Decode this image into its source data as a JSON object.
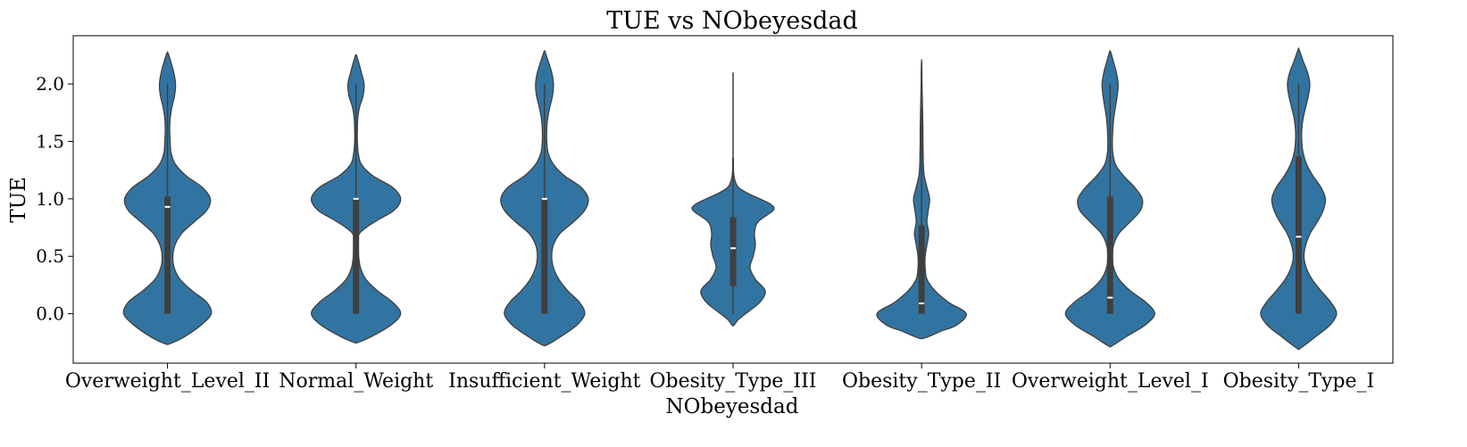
{
  "chart_data": {
    "type": "violin",
    "title": "TUE vs NObeyesdad",
    "xlabel": "NObeyesdad",
    "ylabel": "TUE",
    "ylim": [
      -0.43,
      2.42
    ],
    "yticks": [
      0.0,
      0.5,
      1.0,
      1.5,
      2.0
    ],
    "ytick_labels": [
      "0.0",
      "0.5",
      "1.0",
      "1.5",
      "2.0"
    ],
    "grid": false,
    "legend": "none",
    "colors": {
      "fill": "#3274a1",
      "edge": "#3f3f3f",
      "box": "#3f3f3f",
      "median": "#ffffff"
    },
    "categories": [
      "Overweight_Level_II",
      "Normal_Weight",
      "Insufficient_Weight",
      "Obesity_Type_III",
      "Obesity_Type_II",
      "Overweight_Level_I",
      "Obesity_Type_I"
    ],
    "violins": [
      {
        "category": "Overweight_Level_II",
        "whisker": [
          0.0,
          2.0
        ],
        "q1": 0.0,
        "median": 0.93,
        "q3": 1.02,
        "profile": [
          [
            -0.26,
            0.06
          ],
          [
            -0.2,
            0.38
          ],
          [
            -0.1,
            0.75
          ],
          [
            0.0,
            0.98
          ],
          [
            0.1,
            0.88
          ],
          [
            0.2,
            0.55
          ],
          [
            0.3,
            0.28
          ],
          [
            0.4,
            0.15
          ],
          [
            0.5,
            0.12
          ],
          [
            0.6,
            0.17
          ],
          [
            0.7,
            0.32
          ],
          [
            0.8,
            0.6
          ],
          [
            0.9,
            0.88
          ],
          [
            1.0,
            0.96
          ],
          [
            1.1,
            0.78
          ],
          [
            1.2,
            0.42
          ],
          [
            1.3,
            0.18
          ],
          [
            1.4,
            0.08
          ],
          [
            1.5,
            0.06
          ],
          [
            1.6,
            0.05
          ],
          [
            1.7,
            0.06
          ],
          [
            1.8,
            0.1
          ],
          [
            1.9,
            0.16
          ],
          [
            2.0,
            0.18
          ],
          [
            2.1,
            0.14
          ],
          [
            2.2,
            0.07
          ],
          [
            2.27,
            0.01
          ]
        ]
      },
      {
        "category": "Normal_Weight",
        "whisker": [
          0.0,
          2.0
        ],
        "q1": 0.0,
        "median": 1.0,
        "q3": 1.0,
        "profile": [
          [
            -0.25,
            0.04
          ],
          [
            -0.2,
            0.34
          ],
          [
            -0.1,
            0.78
          ],
          [
            0.0,
            1.0
          ],
          [
            0.1,
            0.82
          ],
          [
            0.2,
            0.48
          ],
          [
            0.3,
            0.22
          ],
          [
            0.4,
            0.1
          ],
          [
            0.5,
            0.06
          ],
          [
            0.6,
            0.05
          ],
          [
            0.7,
            0.08
          ],
          [
            0.8,
            0.42
          ],
          [
            0.9,
            0.85
          ],
          [
            1.0,
            1.0
          ],
          [
            1.1,
            0.82
          ],
          [
            1.2,
            0.38
          ],
          [
            1.3,
            0.12
          ],
          [
            1.4,
            0.05
          ],
          [
            1.5,
            0.03
          ],
          [
            1.6,
            0.03
          ],
          [
            1.7,
            0.04
          ],
          [
            1.8,
            0.08
          ],
          [
            1.9,
            0.16
          ],
          [
            2.0,
            0.18
          ],
          [
            2.1,
            0.12
          ],
          [
            2.2,
            0.05
          ],
          [
            2.25,
            0.01
          ]
        ]
      },
      {
        "category": "Insufficient_Weight",
        "whisker": [
          0.0,
          2.0
        ],
        "q1": 0.0,
        "median": 1.0,
        "q3": 1.0,
        "profile": [
          [
            -0.27,
            0.06
          ],
          [
            -0.2,
            0.36
          ],
          [
            -0.1,
            0.72
          ],
          [
            0.0,
            0.9
          ],
          [
            0.1,
            0.78
          ],
          [
            0.2,
            0.52
          ],
          [
            0.3,
            0.32
          ],
          [
            0.4,
            0.2
          ],
          [
            0.5,
            0.16
          ],
          [
            0.6,
            0.2
          ],
          [
            0.7,
            0.35
          ],
          [
            0.8,
            0.65
          ],
          [
            0.9,
            0.9
          ],
          [
            1.0,
            0.98
          ],
          [
            1.1,
            0.82
          ],
          [
            1.2,
            0.45
          ],
          [
            1.3,
            0.2
          ],
          [
            1.4,
            0.08
          ],
          [
            1.5,
            0.05
          ],
          [
            1.6,
            0.05
          ],
          [
            1.7,
            0.07
          ],
          [
            1.8,
            0.12
          ],
          [
            1.9,
            0.18
          ],
          [
            2.0,
            0.2
          ],
          [
            2.1,
            0.16
          ],
          [
            2.2,
            0.08
          ],
          [
            2.28,
            0.01
          ]
        ]
      },
      {
        "category": "Obesity_Type_III",
        "whisker": [
          0.0,
          2.1
        ],
        "q1": 0.24,
        "median": 0.57,
        "q3": 0.84,
        "profile": [
          [
            -0.1,
            0.02
          ],
          [
            -0.05,
            0.12
          ],
          [
            0.0,
            0.28
          ],
          [
            0.1,
            0.6
          ],
          [
            0.2,
            0.72
          ],
          [
            0.3,
            0.5
          ],
          [
            0.4,
            0.38
          ],
          [
            0.5,
            0.45
          ],
          [
            0.6,
            0.5
          ],
          [
            0.7,
            0.48
          ],
          [
            0.8,
            0.56
          ],
          [
            0.9,
            0.9
          ],
          [
            0.95,
            0.85
          ],
          [
            1.0,
            0.6
          ],
          [
            1.05,
            0.32
          ],
          [
            1.1,
            0.12
          ],
          [
            1.15,
            0.05
          ],
          [
            1.2,
            0.02
          ],
          [
            1.25,
            0.01
          ],
          [
            1.35,
            0.005
          ]
        ]
      },
      {
        "category": "Obesity_Type_II",
        "whisker": [
          0.0,
          1.8
        ],
        "q1": 0.0,
        "median": 0.09,
        "q3": 0.77,
        "profile": [
          [
            -0.21,
            0.08
          ],
          [
            -0.15,
            0.45
          ],
          [
            -0.1,
            0.78
          ],
          [
            0.0,
            1.0
          ],
          [
            0.1,
            0.6
          ],
          [
            0.2,
            0.3
          ],
          [
            0.3,
            0.12
          ],
          [
            0.4,
            0.08
          ],
          [
            0.5,
            0.08
          ],
          [
            0.6,
            0.12
          ],
          [
            0.7,
            0.16
          ],
          [
            0.8,
            0.12
          ],
          [
            0.9,
            0.15
          ],
          [
            1.0,
            0.18
          ],
          [
            1.1,
            0.12
          ],
          [
            1.2,
            0.06
          ],
          [
            1.3,
            0.04
          ],
          [
            1.4,
            0.035
          ],
          [
            1.5,
            0.03
          ],
          [
            1.6,
            0.03
          ],
          [
            1.7,
            0.025
          ],
          [
            1.8,
            0.02
          ],
          [
            1.9,
            0.015
          ],
          [
            2.0,
            0.01
          ],
          [
            2.1,
            0.008
          ],
          [
            2.2,
            0.002
          ]
        ]
      },
      {
        "category": "Overweight_Level_I",
        "whisker": [
          0.0,
          2.0
        ],
        "q1": 0.0,
        "median": 0.14,
        "q3": 1.02,
        "profile": [
          [
            -0.28,
            0.04
          ],
          [
            -0.2,
            0.36
          ],
          [
            -0.1,
            0.78
          ],
          [
            0.0,
            1.0
          ],
          [
            0.1,
            0.8
          ],
          [
            0.2,
            0.45
          ],
          [
            0.3,
            0.2
          ],
          [
            0.4,
            0.08
          ],
          [
            0.5,
            0.05
          ],
          [
            0.6,
            0.08
          ],
          [
            0.7,
            0.2
          ],
          [
            0.8,
            0.45
          ],
          [
            0.9,
            0.68
          ],
          [
            1.0,
            0.72
          ],
          [
            1.1,
            0.55
          ],
          [
            1.2,
            0.3
          ],
          [
            1.3,
            0.12
          ],
          [
            1.4,
            0.06
          ],
          [
            1.5,
            0.05
          ],
          [
            1.6,
            0.06
          ],
          [
            1.7,
            0.08
          ],
          [
            1.8,
            0.12
          ],
          [
            1.9,
            0.16
          ],
          [
            2.0,
            0.18
          ],
          [
            2.1,
            0.14
          ],
          [
            2.2,
            0.07
          ],
          [
            2.28,
            0.01
          ]
        ]
      },
      {
        "category": "Obesity_Type_I",
        "whisker": [
          0.0,
          2.0
        ],
        "q1": 0.0,
        "median": 0.67,
        "q3": 1.37,
        "profile": [
          [
            -0.3,
            0.04
          ],
          [
            -0.2,
            0.38
          ],
          [
            -0.1,
            0.7
          ],
          [
            0.0,
            0.85
          ],
          [
            0.1,
            0.72
          ],
          [
            0.2,
            0.5
          ],
          [
            0.3,
            0.3
          ],
          [
            0.4,
            0.17
          ],
          [
            0.5,
            0.12
          ],
          [
            0.6,
            0.16
          ],
          [
            0.7,
            0.26
          ],
          [
            0.8,
            0.42
          ],
          [
            0.9,
            0.55
          ],
          [
            1.0,
            0.6
          ],
          [
            1.1,
            0.5
          ],
          [
            1.2,
            0.32
          ],
          [
            1.3,
            0.18
          ],
          [
            1.4,
            0.1
          ],
          [
            1.5,
            0.07
          ],
          [
            1.6,
            0.07
          ],
          [
            1.7,
            0.1
          ],
          [
            1.8,
            0.16
          ],
          [
            1.9,
            0.22
          ],
          [
            2.0,
            0.25
          ],
          [
            2.1,
            0.2
          ],
          [
            2.2,
            0.1
          ],
          [
            2.3,
            0.01
          ]
        ]
      }
    ]
  }
}
